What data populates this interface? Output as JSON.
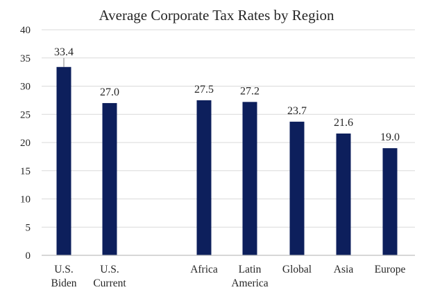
{
  "chart_data": {
    "type": "bar",
    "title": "Average Corporate Tax Rates by Region",
    "xlabel": "",
    "ylabel": "",
    "categories": [
      [
        "U.S.",
        "Biden"
      ],
      [
        "U.S.",
        "Current"
      ],
      [
        "Africa"
      ],
      [
        "Latin",
        "America"
      ],
      [
        "Global"
      ],
      [
        "Asia"
      ],
      [
        "Europe"
      ]
    ],
    "values": [
      33.4,
      27.0,
      27.5,
      27.2,
      23.7,
      21.6,
      19.0
    ],
    "value_labels": [
      "33.4",
      "27.0",
      "27.5",
      "27.2",
      "23.7",
      "21.6",
      "19.0"
    ],
    "ylim": [
      0,
      40
    ],
    "yticks": [
      0,
      5,
      10,
      15,
      20,
      25,
      30,
      35,
      40
    ],
    "grid": true,
    "bar_color": "#0d1f5c"
  }
}
